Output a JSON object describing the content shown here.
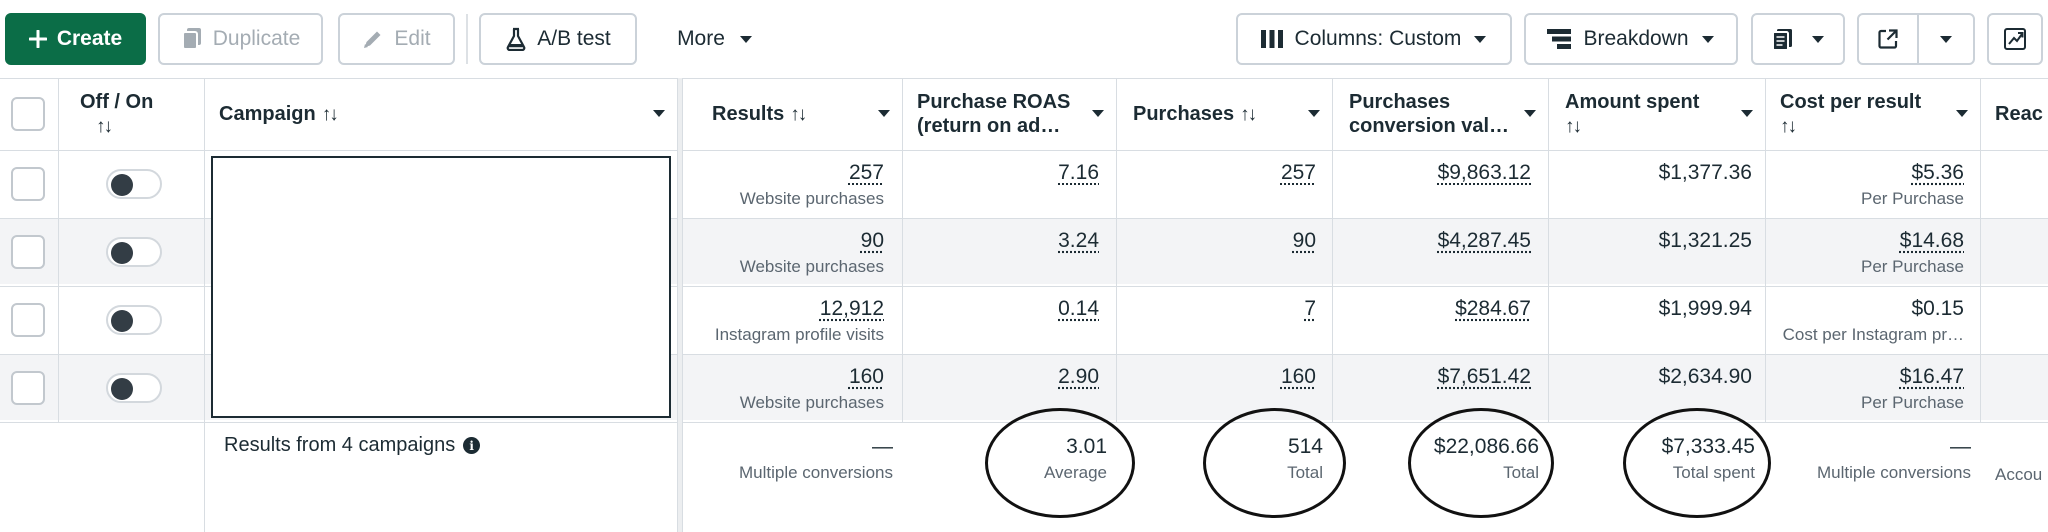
{
  "toolbar": {
    "create_label": "Create",
    "duplicate_label": "Duplicate",
    "edit_label": "Edit",
    "ab_test_label": "A/B test",
    "more_label": "More",
    "columns_label": "Columns: Custom",
    "breakdown_label": "Breakdown"
  },
  "table": {
    "headers": {
      "off_on": "Off / On",
      "campaign": "Campaign",
      "results": "Results",
      "roas": "Purchase ROAS (return on ad…",
      "purchases": "Purchases",
      "conv_value": "Purchases conversion val…",
      "amount_spent": "Amount spent",
      "cost_per_result": "Cost per result",
      "reach": "Reac"
    },
    "rows": [
      {
        "results": "257",
        "results_sub": "Website purchases",
        "roas": "7.16",
        "purchases": "257",
        "conv_value": "$9,863.12",
        "amount_spent": "$1,377.36",
        "cost": "$5.36",
        "cost_sub": "Per Purchase"
      },
      {
        "results": "90",
        "results_sub": "Website purchases",
        "roas": "3.24",
        "purchases": "90",
        "conv_value": "$4,287.45",
        "amount_spent": "$1,321.25",
        "cost": "$14.68",
        "cost_sub": "Per Purchase"
      },
      {
        "results": "12,912",
        "results_sub": "Instagram profile visits",
        "roas": "0.14",
        "purchases": "7",
        "conv_value": "$284.67",
        "amount_spent": "$1,999.94",
        "cost": "$0.15",
        "cost_sub": "Cost per Instagram pr…"
      },
      {
        "results": "160",
        "results_sub": "Website purchases",
        "roas": "2.90",
        "purchases": "160",
        "conv_value": "$7,651.42",
        "amount_spent": "$2,634.90",
        "cost": "$16.47",
        "cost_sub": "Per Purchase"
      }
    ],
    "summary": {
      "label": "Results from 4 campaigns",
      "results": "—",
      "results_sub": "Multiple conversions",
      "roas": "3.01",
      "roas_sub": "Average",
      "purchases": "514",
      "purchases_sub": "Total",
      "conv_value": "$22,086.66",
      "conv_value_sub": "Total",
      "amount_spent": "$7,333.45",
      "amount_spent_sub": "Total spent",
      "cost": "—",
      "cost_sub": "Multiple conversions",
      "reach_sub": "Accou"
    }
  }
}
